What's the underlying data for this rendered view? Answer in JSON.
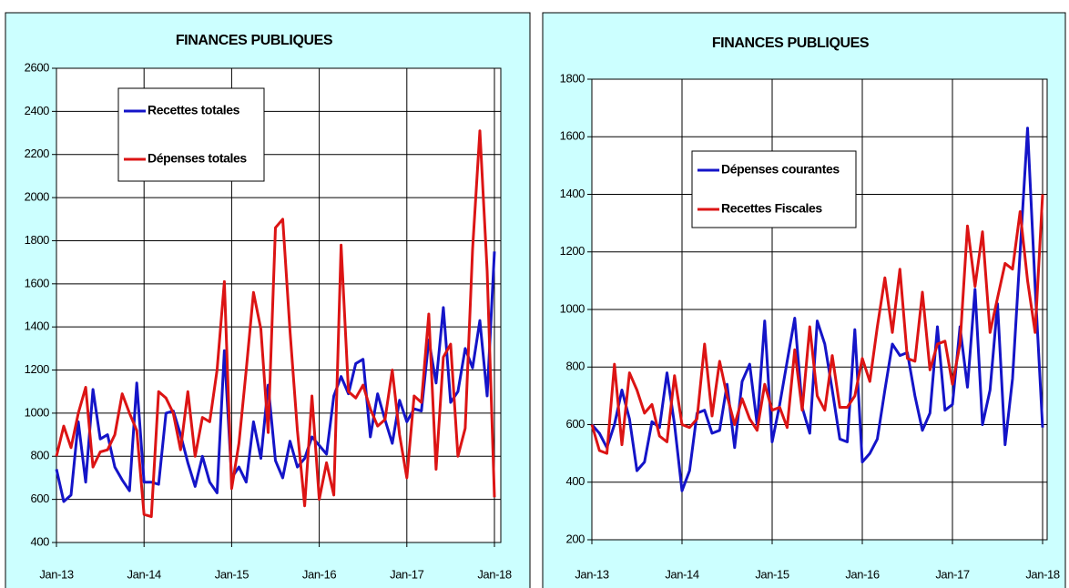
{
  "chart_data": [
    {
      "type": "line",
      "title": "FINANCES PUBLIQUES",
      "categories": [
        "Jan-13",
        null,
        null,
        null,
        null,
        null,
        null,
        null,
        null,
        null,
        null,
        null,
        "Jan-14",
        null,
        null,
        null,
        null,
        null,
        null,
        null,
        null,
        null,
        null,
        null,
        "Jan-15",
        null,
        null,
        null,
        null,
        null,
        null,
        null,
        null,
        null,
        null,
        null,
        "Jan-16",
        null,
        null,
        null,
        null,
        null,
        null,
        null,
        null,
        null,
        null,
        null,
        "Jan-17",
        null,
        null,
        null,
        null,
        null,
        null,
        null,
        null,
        null,
        null,
        null,
        "Jan-18"
      ],
      "series": [
        {
          "name": "Recettes totales",
          "color": "#1414c8",
          "values": [
            740,
            590,
            620,
            960,
            680,
            1110,
            880,
            900,
            750,
            690,
            640,
            1140,
            680,
            680,
            670,
            1000,
            1010,
            900,
            770,
            660,
            800,
            680,
            630,
            1290,
            700,
            750,
            680,
            960,
            790,
            1130,
            780,
            700,
            870,
            750,
            790,
            890,
            850,
            810,
            1080,
            1170,
            1090,
            1230,
            1250,
            890,
            1090,
            970,
            860,
            1060,
            960,
            1020,
            1010,
            1340,
            1140,
            1490,
            1050,
            1100,
            1300,
            1210,
            1430,
            1080,
            1750
          ]
        },
        {
          "name": "Dépenses totales",
          "color": "#dc1414",
          "values": [
            800,
            940,
            840,
            1000,
            1120,
            750,
            820,
            830,
            900,
            1090,
            1000,
            920,
            530,
            520,
            1100,
            1070,
            1000,
            830,
            1100,
            800,
            980,
            960,
            1200,
            1610,
            650,
            860,
            1200,
            1560,
            1390,
            910,
            1860,
            1900,
            1380,
            920,
            570,
            1080,
            600,
            770,
            620,
            1780,
            1100,
            1070,
            1130,
            1020,
            940,
            970,
            1200,
            900,
            700,
            1080,
            1050,
            1460,
            740,
            1260,
            1320,
            800,
            930,
            1760,
            2310,
            1660,
            610
          ]
        }
      ],
      "ylim": [
        400,
        2600
      ],
      "yticks": [
        400,
        600,
        800,
        1000,
        1200,
        1400,
        1600,
        1800,
        2000,
        2200,
        2400,
        2600
      ],
      "grid": true
    },
    {
      "type": "line",
      "title": "FINANCES PUBLIQUES",
      "categories": [
        "Jan-13",
        null,
        null,
        null,
        null,
        null,
        null,
        null,
        null,
        null,
        null,
        null,
        "Jan-14",
        null,
        null,
        null,
        null,
        null,
        null,
        null,
        null,
        null,
        null,
        null,
        "Jan-15",
        null,
        null,
        null,
        null,
        null,
        null,
        null,
        null,
        null,
        null,
        null,
        "Jan-16",
        null,
        null,
        null,
        null,
        null,
        null,
        null,
        null,
        null,
        null,
        null,
        "Jan-17",
        null,
        null,
        null,
        null,
        null,
        null,
        null,
        null,
        null,
        null,
        null,
        "Jan-18"
      ],
      "series": [
        {
          "name": "Dépenses courantes",
          "color": "#1414c8",
          "values": [
            600,
            570,
            520,
            600,
            720,
            620,
            440,
            470,
            610,
            590,
            780,
            600,
            370,
            440,
            640,
            650,
            570,
            580,
            740,
            520,
            750,
            810,
            600,
            960,
            540,
            670,
            820,
            970,
            660,
            570,
            960,
            880,
            720,
            550,
            540,
            930,
            470,
            500,
            550,
            720,
            880,
            840,
            850,
            700,
            580,
            640,
            940,
            650,
            670,
            940,
            730,
            1070,
            600,
            720,
            1020,
            530,
            760,
            1200,
            1630,
            1080,
            590
          ]
        },
        {
          "name": "Recettes Fiscales",
          "color": "#dc1414",
          "values": [
            600,
            510,
            500,
            810,
            530,
            780,
            720,
            640,
            670,
            560,
            540,
            770,
            600,
            590,
            620,
            880,
            630,
            820,
            700,
            600,
            690,
            620,
            580,
            740,
            650,
            660,
            590,
            860,
            650,
            940,
            700,
            650,
            840,
            660,
            660,
            700,
            830,
            750,
            940,
            1110,
            920,
            1140,
            830,
            820,
            1060,
            790,
            880,
            890,
            740,
            880,
            1290,
            1080,
            1270,
            920,
            1040,
            1160,
            1140,
            1340,
            1100,
            920,
            1400
          ]
        }
      ],
      "ylim": [
        200,
        1800
      ],
      "yticks": [
        200,
        400,
        600,
        800,
        1000,
        1200,
        1400,
        1600,
        1800
      ],
      "grid": true
    }
  ]
}
